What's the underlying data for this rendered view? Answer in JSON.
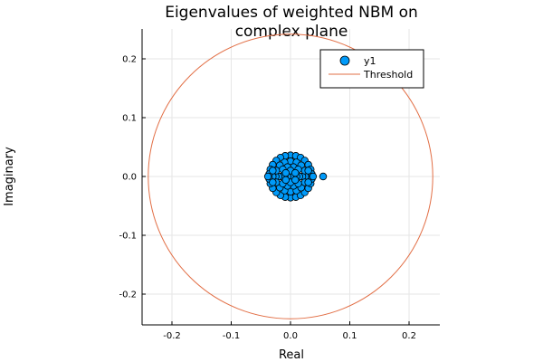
{
  "chart_data": {
    "type": "scatter",
    "title": [
      "Eigenvalues of weighted NBM on",
      "complex plane"
    ],
    "xlabel": "Real",
    "ylabel": "Imaginary",
    "xlim": [
      -0.25,
      0.25
    ],
    "ylim": [
      -0.25,
      0.25
    ],
    "aspect": "equal",
    "grid": true,
    "legend_position": "top-right",
    "xticks": [
      -0.2,
      -0.1,
      0.0,
      0.1,
      0.2
    ],
    "xtick_labels": [
      "-0.2",
      "-0.1",
      "0.0",
      "0.1",
      "0.2"
    ],
    "yticks": [
      -0.2,
      -0.1,
      0.0,
      0.1,
      0.2
    ],
    "ytick_labels": [
      "-0.2",
      "-0.1",
      "0.0",
      "0.1",
      "0.2"
    ],
    "series": [
      {
        "name": "y1",
        "type": "scatter",
        "color": "#009af9",
        "points": [
          [
            0.055,
            0.0
          ],
          [
            0.03,
            0.0
          ],
          [
            0.025,
            0.0
          ],
          [
            0.02,
            0.0
          ],
          [
            0.015,
            0.0
          ],
          [
            0.01,
            0.0
          ],
          [
            0.005,
            0.0
          ],
          [
            0.0,
            0.0
          ],
          [
            -0.005,
            0.0
          ],
          [
            -0.01,
            0.0
          ],
          [
            -0.015,
            0.0
          ],
          [
            -0.02,
            0.0
          ],
          [
            -0.025,
            0.0
          ],
          [
            -0.03,
            0.0
          ],
          [
            0.0,
            0.036
          ],
          [
            0.009,
            0.035
          ],
          [
            0.017,
            0.032
          ],
          [
            0.024,
            0.027
          ],
          [
            0.03,
            0.02
          ],
          [
            0.034,
            0.012
          ],
          [
            0.036,
            0.004
          ],
          [
            0.0,
            -0.036
          ],
          [
            0.009,
            -0.035
          ],
          [
            0.017,
            -0.032
          ],
          [
            0.024,
            -0.027
          ],
          [
            0.03,
            -0.02
          ],
          [
            0.034,
            -0.012
          ],
          [
            0.036,
            -0.004
          ],
          [
            -0.009,
            0.035
          ],
          [
            -0.017,
            0.032
          ],
          [
            -0.024,
            0.027
          ],
          [
            -0.03,
            0.02
          ],
          [
            -0.034,
            0.012
          ],
          [
            -0.036,
            0.004
          ],
          [
            -0.009,
            -0.035
          ],
          [
            -0.017,
            -0.032
          ],
          [
            -0.024,
            -0.027
          ],
          [
            -0.03,
            -0.02
          ],
          [
            -0.034,
            -0.012
          ],
          [
            -0.036,
            -0.004
          ],
          [
            0.0,
            0.026
          ],
          [
            0.01,
            0.024
          ],
          [
            0.018,
            0.019
          ],
          [
            0.024,
            0.01
          ],
          [
            -0.01,
            0.024
          ],
          [
            -0.018,
            0.019
          ],
          [
            -0.024,
            0.01
          ],
          [
            0.0,
            -0.026
          ],
          [
            0.01,
            -0.024
          ],
          [
            0.018,
            -0.019
          ],
          [
            0.024,
            -0.01
          ],
          [
            -0.01,
            -0.024
          ],
          [
            -0.018,
            -0.019
          ],
          [
            -0.024,
            -0.01
          ],
          [
            0.005,
            0.016
          ],
          [
            -0.005,
            0.016
          ],
          [
            0.013,
            0.012
          ],
          [
            -0.013,
            0.012
          ],
          [
            0.005,
            -0.016
          ],
          [
            -0.005,
            -0.016
          ],
          [
            0.013,
            -0.012
          ],
          [
            -0.013,
            -0.012
          ],
          [
            0.0,
            0.01
          ],
          [
            0.0,
            -0.01
          ],
          [
            0.008,
            0.006
          ],
          [
            -0.008,
            0.006
          ],
          [
            0.008,
            -0.006
          ],
          [
            -0.008,
            -0.006
          ],
          [
            0.03,
            0.01
          ],
          [
            0.03,
            -0.01
          ],
          [
            -0.03,
            0.01
          ],
          [
            -0.03,
            -0.01
          ],
          [
            0.038,
            0.0
          ],
          [
            -0.038,
            0.0
          ]
        ]
      },
      {
        "name": "Threshold",
        "type": "line",
        "shape": "circle",
        "color": "#e26f46",
        "center": [
          0.0,
          0.0
        ],
        "radius": 0.24
      }
    ]
  }
}
